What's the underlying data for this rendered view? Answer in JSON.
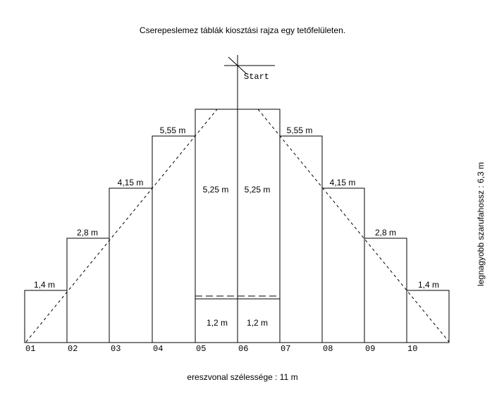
{
  "title": "Cserepeslemez táblák kiosztási rajza egy tetőfelületen.",
  "start_label": "Start",
  "bottom_label": "ereszvonal szélessége : 11 m",
  "side_label": "legnagyobb szarufahossz : 6,3 m",
  "columns": [
    {
      "id": "01",
      "length_label": "1,4 m"
    },
    {
      "id": "02",
      "length_label": "2,8 m"
    },
    {
      "id": "03",
      "length_label": "4,15 m"
    },
    {
      "id": "04",
      "length_label": "5,55 m"
    },
    {
      "id": "05",
      "upper_label": "5,25 m",
      "lower_label": "1,2 m"
    },
    {
      "id": "06",
      "upper_label": "5,25 m",
      "lower_label": "1,2 m"
    },
    {
      "id": "07",
      "length_label": "5,55 m"
    },
    {
      "id": "08",
      "length_label": "4,15 m"
    },
    {
      "id": "09",
      "length_label": "2,8 m"
    },
    {
      "id": "10",
      "length_label": "1,4 m"
    }
  ]
}
